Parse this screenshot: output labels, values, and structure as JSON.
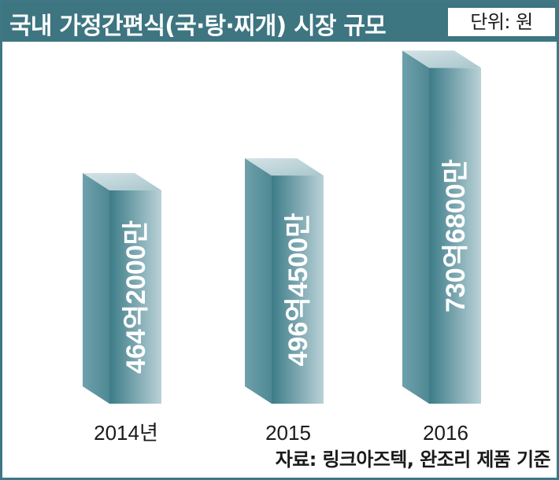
{
  "header": {
    "title": "국내 가정간편식(국·탕·찌개) 시장 규모",
    "unit": "단위: 원"
  },
  "footer": {
    "source": "자료: 링크아즈텍, 완조리 제품 기준"
  },
  "colors": {
    "header_bg": "#3d7581",
    "frame": "#3f7784",
    "bar_front_dark": "#3d7d89",
    "bar_front_light": "#b8d0d6",
    "bar_top": "#c2d7dc",
    "bar_side": "#5f95a1"
  },
  "chart_data": {
    "type": "bar",
    "categories": [
      "2014년",
      "2015",
      "2016"
    ],
    "values": [
      46420000000,
      49645000000,
      73068000000
    ],
    "value_labels": [
      "464억2000만",
      "496억4500만",
      "730억6800만"
    ],
    "ylim": [
      0,
      75000000000
    ],
    "title": "국내 가정간편식(국·탕·찌개) 시장 규모",
    "xlabel": "",
    "ylabel": "",
    "grid": false,
    "legend": "none"
  }
}
